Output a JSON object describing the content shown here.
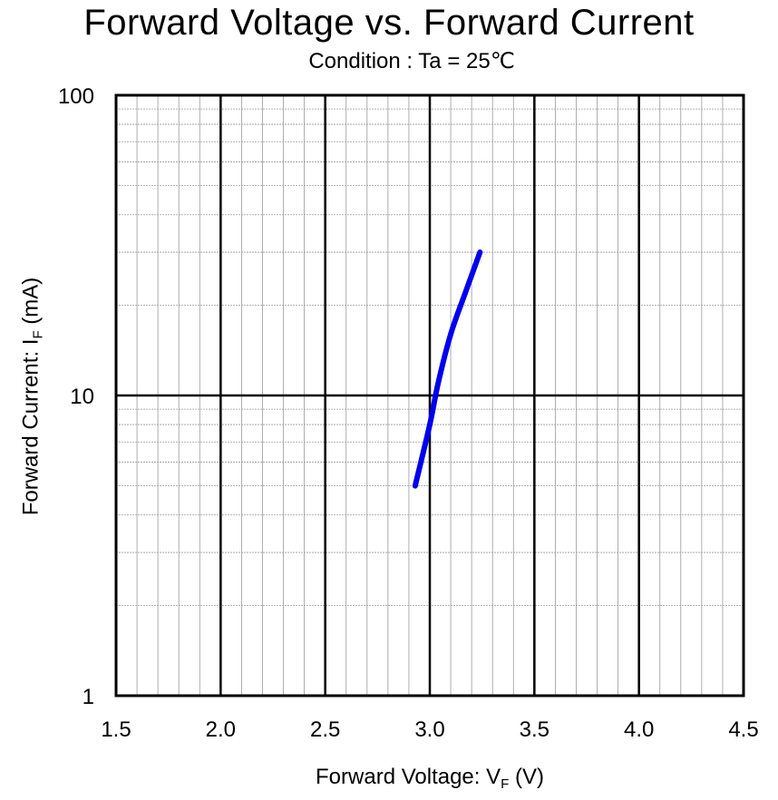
{
  "chart_data": {
    "type": "line",
    "title": "Forward Voltage vs. Forward Current",
    "subtitle": "Condition : Ta = 25℃",
    "xlabel": {
      "prefix": "Forward Voltage:  V",
      "sub": "F",
      "suffix": " (V)"
    },
    "ylabel": {
      "prefix": "Forward Current:  I",
      "sub": "F",
      "suffix": " (mA)"
    },
    "xlim": [
      1.5,
      4.5
    ],
    "ylim": [
      1,
      100
    ],
    "yscale": "log",
    "grid": true,
    "x_ticks": [
      "1.5",
      "2.0",
      "2.5",
      "3.0",
      "3.5",
      "4.0",
      "4.5"
    ],
    "y_ticks": [
      "1",
      "10",
      "100"
    ],
    "series": [
      {
        "color": "#0000ee",
        "x": [
          2.93,
          3.0,
          3.04,
          3.1,
          3.17,
          3.24
        ],
        "y": [
          5,
          8,
          11,
          16,
          22,
          30
        ]
      }
    ]
  }
}
